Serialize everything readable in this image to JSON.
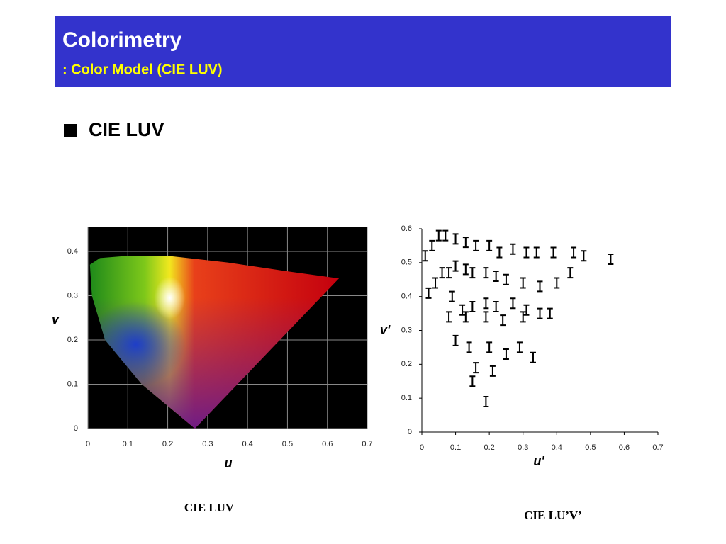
{
  "header": {
    "title": "Colorimetry",
    "subtitle": ": Color Model (CIE LUV)"
  },
  "bullet": "CIE LUV",
  "captions": [
    "CIE LUV",
    "CIE LU’V’"
  ],
  "chart_data": [
    {
      "type": "gamut",
      "x_label": "u",
      "y_label": "v",
      "x": [
        0.268,
        0.135,
        0.043,
        0.01,
        0.005,
        0.03,
        0.1,
        0.2,
        0.35,
        0.5,
        0.629
      ],
      "values": [
        0,
        0.1,
        0.2,
        0.3,
        0.37,
        0.385,
        0.39,
        0.39,
        0.375,
        0.355,
        0.339
      ],
      "xlim": [
        0,
        0.7
      ],
      "ylim": [
        0,
        0.456
      ],
      "xticks": [
        0,
        0.1,
        0.2,
        0.3,
        0.4,
        0.5,
        0.6,
        0.7
      ],
      "yticks": [
        0,
        0.1,
        0.2,
        0.3,
        0.4
      ],
      "grid": true,
      "background": "#000000"
    },
    {
      "type": "scatter",
      "x_label": "u'",
      "y_label": "v'",
      "x": [
        0.01,
        0.03,
        0.05,
        0.07,
        0.1,
        0.13,
        0.16,
        0.2,
        0.23,
        0.27,
        0.31,
        0.34,
        0.39,
        0.45,
        0.48,
        0.56,
        0.02,
        0.04,
        0.06,
        0.08,
        0.1,
        0.13,
        0.15,
        0.19,
        0.22,
        0.25,
        0.3,
        0.35,
        0.4,
        0.44,
        0.09,
        0.12,
        0.15,
        0.19,
        0.22,
        0.27,
        0.31,
        0.35,
        0.38,
        0.08,
        0.13,
        0.19,
        0.24,
        0.3,
        0.1,
        0.14,
        0.2,
        0.25,
        0.29,
        0.33,
        0.16,
        0.21,
        0.15,
        0.19
      ],
      "values": [
        0.52,
        0.55,
        0.58,
        0.58,
        0.57,
        0.56,
        0.55,
        0.55,
        0.53,
        0.54,
        0.53,
        0.53,
        0.53,
        0.53,
        0.52,
        0.51,
        0.41,
        0.44,
        0.47,
        0.47,
        0.49,
        0.48,
        0.47,
        0.47,
        0.46,
        0.45,
        0.44,
        0.43,
        0.44,
        0.47,
        0.4,
        0.36,
        0.37,
        0.38,
        0.37,
        0.38,
        0.36,
        0.35,
        0.35,
        0.34,
        0.34,
        0.34,
        0.33,
        0.34,
        0.27,
        0.25,
        0.25,
        0.23,
        0.25,
        0.22,
        0.19,
        0.18,
        0.15,
        0.09
      ],
      "xlim": [
        0,
        0.7
      ],
      "ylim": [
        0,
        0.6
      ],
      "xticks": [
        0,
        0.1,
        0.2,
        0.3,
        0.4,
        0.5,
        0.6,
        0.7
      ],
      "yticks": [
        0,
        0.1,
        0.2,
        0.3,
        0.4,
        0.5,
        0.6
      ],
      "grid": false,
      "color": "#000000"
    }
  ]
}
